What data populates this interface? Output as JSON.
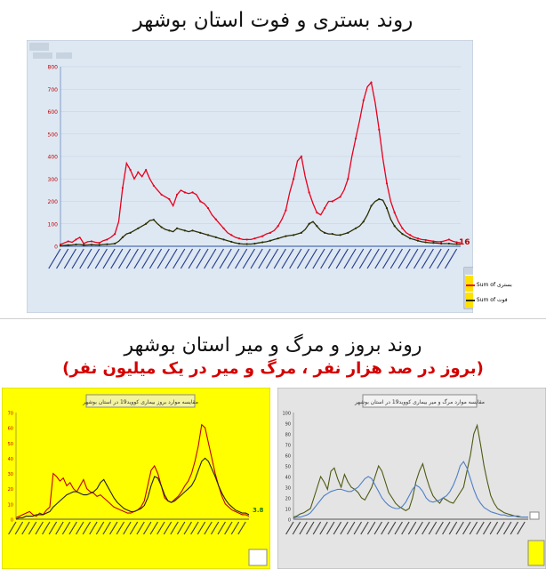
{
  "titles": {
    "top": "روند بستری و فوت استان بوشهر",
    "bottom": "روند بروز و مرگ و میر استان بوشهر",
    "bottom_sub": "(بروز در صد هزار نفر ، مرگ و میر در یک میلیون نفر)"
  },
  "chart_data": [
    {
      "type": "line",
      "ylim": [
        0,
        800
      ],
      "yticks": [
        0,
        100,
        200,
        300,
        400,
        500,
        600,
        700,
        800
      ],
      "grid": true,
      "legend_position": "right",
      "colors": {
        "background": "#dde8f3",
        "plot": "#dde8f3",
        "series1": "#e8001c",
        "series2": "#2d2d00"
      },
      "end_label": "16",
      "series": [
        {
          "name": "Sum of بستری",
          "values": [
            8,
            15,
            22,
            18,
            30,
            40,
            12,
            20,
            22,
            18,
            15,
            25,
            30,
            40,
            55,
            110,
            260,
            370,
            340,
            300,
            330,
            310,
            340,
            300,
            270,
            250,
            230,
            220,
            210,
            180,
            230,
            250,
            240,
            235,
            240,
            230,
            200,
            190,
            170,
            140,
            120,
            100,
            80,
            60,
            50,
            40,
            35,
            30,
            30,
            30,
            35,
            40,
            45,
            55,
            60,
            70,
            90,
            120,
            160,
            240,
            300,
            380,
            400,
            310,
            240,
            190,
            150,
            140,
            170,
            200,
            200,
            210,
            220,
            250,
            300,
            400,
            480,
            560,
            650,
            710,
            730,
            640,
            520,
            390,
            280,
            200,
            150,
            110,
            80,
            60,
            50,
            40,
            35,
            30,
            28,
            25,
            22,
            20,
            20,
            25,
            30,
            22,
            18,
            16
          ]
        },
        {
          "name": "Sum of فوت",
          "values": [
            2,
            4,
            5,
            6,
            8,
            8,
            5,
            6,
            7,
            6,
            6,
            8,
            9,
            10,
            12,
            22,
            40,
            55,
            60,
            70,
            80,
            90,
            100,
            115,
            118,
            100,
            85,
            75,
            70,
            65,
            80,
            75,
            70,
            65,
            70,
            65,
            60,
            55,
            50,
            45,
            40,
            35,
            30,
            25,
            20,
            15,
            12,
            10,
            10,
            10,
            12,
            15,
            18,
            20,
            25,
            30,
            35,
            40,
            45,
            48,
            50,
            55,
            60,
            75,
            100,
            110,
            90,
            70,
            60,
            55,
            55,
            50,
            50,
            55,
            60,
            70,
            80,
            90,
            110,
            140,
            180,
            200,
            210,
            205,
            170,
            120,
            90,
            70,
            55,
            45,
            35,
            30,
            25,
            20,
            18,
            16,
            15,
            14,
            12,
            12,
            12,
            10,
            10,
            9
          ]
        }
      ]
    },
    {
      "type": "line",
      "ylim": [
        0,
        70
      ],
      "yticks": [
        0,
        10,
        20,
        30,
        40,
        50,
        60,
        70
      ],
      "colors": {
        "background": "#ffff00",
        "series1": "#c00000",
        "series2": "#1f1f1f"
      },
      "title": "مقایسه موارد بروز بیماری کووید19 در استان بوشهر",
      "right_label": "3.8",
      "series": [
        {
          "name": "",
          "values": [
            1,
            2,
            3,
            4,
            5,
            3,
            2,
            4,
            3,
            6,
            8,
            30,
            28,
            25,
            27,
            22,
            24,
            20,
            18,
            22,
            26,
            20,
            18,
            17,
            15,
            16,
            14,
            12,
            10,
            8,
            7,
            6,
            5,
            4,
            4,
            5,
            6,
            8,
            12,
            22,
            32,
            35,
            30,
            22,
            14,
            12,
            11,
            13,
            15,
            18,
            22,
            25,
            30,
            38,
            48,
            62,
            60,
            50,
            40,
            30,
            22,
            15,
            10,
            8,
            6,
            5,
            4,
            3,
            3,
            2
          ]
        },
        {
          "name": "",
          "values": [
            0,
            1,
            1,
            2,
            2,
            2,
            3,
            3,
            3,
            4,
            5,
            8,
            10,
            12,
            14,
            16,
            17,
            18,
            18,
            17,
            16,
            16,
            17,
            18,
            20,
            24,
            26,
            22,
            18,
            14,
            11,
            9,
            7,
            6,
            5,
            5,
            6,
            7,
            9,
            14,
            22,
            28,
            27,
            22,
            16,
            12,
            11,
            12,
            14,
            16,
            18,
            20,
            22,
            26,
            32,
            38,
            40,
            38,
            33,
            28,
            22,
            17,
            13,
            10,
            8,
            6,
            5,
            4,
            4,
            3
          ]
        }
      ]
    },
    {
      "type": "line",
      "ylim": [
        0,
        100
      ],
      "yticks": [
        0,
        10,
        20,
        30,
        40,
        50,
        60,
        70,
        80,
        90,
        100
      ],
      "colors": {
        "background": "#e4e4e4",
        "series1": "#4d5a12",
        "series2": "#4d7fc9"
      },
      "title": "مقایسه موارد مرگ و میر بیماری کووید19 در استان بوشهر",
      "series": [
        {
          "name": "",
          "values": [
            2,
            3,
            5,
            6,
            8,
            10,
            20,
            30,
            40,
            35,
            28,
            45,
            48,
            38,
            30,
            42,
            35,
            30,
            28,
            25,
            20,
            18,
            24,
            30,
            40,
            50,
            45,
            35,
            25,
            20,
            15,
            12,
            10,
            8,
            10,
            20,
            35,
            45,
            52,
            40,
            30,
            22,
            18,
            15,
            20,
            18,
            16,
            15,
            20,
            25,
            30,
            45,
            60,
            80,
            88,
            70,
            50,
            35,
            22,
            15,
            10,
            8,
            6,
            5,
            4,
            3,
            3,
            2,
            2,
            2
          ]
        },
        {
          "name": "",
          "values": [
            1,
            2,
            2,
            3,
            4,
            6,
            10,
            14,
            18,
            22,
            24,
            26,
            27,
            28,
            28,
            27,
            26,
            26,
            28,
            30,
            34,
            38,
            40,
            38,
            32,
            26,
            20,
            16,
            13,
            11,
            10,
            10,
            12,
            16,
            22,
            28,
            32,
            30,
            26,
            20,
            17,
            16,
            17,
            18,
            20,
            22,
            26,
            32,
            40,
            50,
            54,
            48,
            38,
            28,
            20,
            15,
            11,
            9,
            7,
            6,
            5,
            4,
            4,
            3,
            3,
            3,
            2,
            2,
            2,
            2
          ]
        }
      ]
    }
  ]
}
